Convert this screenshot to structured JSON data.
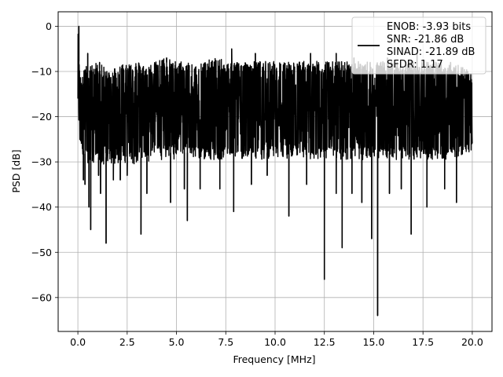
{
  "chart_data": {
    "type": "line",
    "xlabel": "Frequency [MHz]",
    "ylabel": "PSD [dB]",
    "xlim": [
      -1,
      21
    ],
    "ylim": [
      -67.5,
      3.2
    ],
    "xticks": [
      0.0,
      2.5,
      5.0,
      7.5,
      10.0,
      12.5,
      15.0,
      17.5,
      20.0
    ],
    "xtick_labels": [
      "0.0",
      "2.5",
      "5.0",
      "7.5",
      "10.0",
      "12.5",
      "15.0",
      "17.5",
      "20.0"
    ],
    "yticks": [
      0,
      -10,
      -20,
      -30,
      -40,
      -50,
      -60
    ],
    "ytick_labels": [
      "0",
      "−10",
      "−20",
      "−30",
      "−40",
      "−50",
      "−60"
    ],
    "grid": true,
    "legend_position": "top-right",
    "series": [
      {
        "name": "ENOB: -3.93 bits\nSNR: -21.86 dB\nSINAD: -21.89 dB\nSFDR: 1.17",
        "color": "#000000",
        "band_upper": [
          [
            0.0,
            0.0
          ],
          [
            0.02,
            -4
          ],
          [
            0.06,
            -9
          ],
          [
            0.12,
            -11
          ],
          [
            0.3,
            -10
          ],
          [
            0.6,
            -10
          ],
          [
            1.0,
            -9
          ],
          [
            1.5,
            -11
          ],
          [
            2.0,
            -10
          ],
          [
            2.5,
            -9
          ],
          [
            3.0,
            -9
          ],
          [
            3.5,
            -10
          ],
          [
            4.0,
            -9
          ],
          [
            4.5,
            -8
          ],
          [
            5.0,
            -9
          ],
          [
            5.5,
            -9
          ],
          [
            6.0,
            -9
          ],
          [
            6.5,
            -9
          ],
          [
            7.0,
            -8
          ],
          [
            7.5,
            -9
          ],
          [
            8.0,
            -9
          ],
          [
            8.5,
            -9
          ],
          [
            9.0,
            -9
          ],
          [
            9.5,
            -9
          ],
          [
            10.0,
            -9
          ],
          [
            10.5,
            -9
          ],
          [
            11.0,
            -9
          ],
          [
            11.5,
            -9
          ],
          [
            12.0,
            -9
          ],
          [
            12.5,
            -9
          ],
          [
            13.0,
            -9
          ],
          [
            13.5,
            -9
          ],
          [
            14.0,
            -9
          ],
          [
            14.5,
            -9
          ],
          [
            15.0,
            -9
          ],
          [
            15.5,
            -9
          ],
          [
            16.0,
            -9
          ],
          [
            16.5,
            -9
          ],
          [
            17.0,
            -9
          ],
          [
            17.5,
            -9
          ],
          [
            18.0,
            -9
          ],
          [
            18.5,
            -9
          ],
          [
            19.0,
            -9
          ],
          [
            19.5,
            -10
          ],
          [
            20.0,
            -12
          ]
        ],
        "band_lower": [
          [
            0.0,
            -23
          ],
          [
            0.3,
            -28
          ],
          [
            0.6,
            -29
          ],
          [
            1.0,
            -29
          ],
          [
            1.5,
            -29
          ],
          [
            2.0,
            -29
          ],
          [
            2.5,
            -29
          ],
          [
            3.0,
            -29
          ],
          [
            3.5,
            -29
          ],
          [
            4.0,
            -28
          ],
          [
            4.5,
            -28
          ],
          [
            5.0,
            -28
          ],
          [
            5.5,
            -28
          ],
          [
            6.0,
            -28
          ],
          [
            6.5,
            -28
          ],
          [
            7.0,
            -28
          ],
          [
            7.5,
            -28
          ],
          [
            8.0,
            -28
          ],
          [
            8.5,
            -28
          ],
          [
            9.0,
            -28
          ],
          [
            9.5,
            -28
          ],
          [
            10.0,
            -28
          ],
          [
            10.5,
            -28
          ],
          [
            11.0,
            -28
          ],
          [
            11.5,
            -28
          ],
          [
            12.0,
            -28
          ],
          [
            12.5,
            -28
          ],
          [
            13.0,
            -28
          ],
          [
            13.5,
            -28
          ],
          [
            14.0,
            -28
          ],
          [
            14.5,
            -28
          ],
          [
            15.0,
            -28
          ],
          [
            15.5,
            -28
          ],
          [
            16.0,
            -28
          ],
          [
            16.5,
            -28
          ],
          [
            17.0,
            -28
          ],
          [
            17.5,
            -28
          ],
          [
            18.0,
            -28
          ],
          [
            18.5,
            -28
          ],
          [
            19.0,
            -28
          ],
          [
            19.5,
            -27
          ],
          [
            20.0,
            -26
          ]
        ],
        "peaks": [
          [
            0.05,
            0.0
          ],
          [
            0.5,
            -6
          ],
          [
            1.1,
            -8
          ],
          [
            2.6,
            -9
          ],
          [
            4.5,
            -7
          ],
          [
            7.8,
            -5
          ],
          [
            9.0,
            -6
          ],
          [
            11.8,
            -6
          ],
          [
            13.1,
            -6
          ],
          [
            14.0,
            -7
          ],
          [
            15.7,
            -7
          ],
          [
            17.2,
            -6
          ],
          [
            18.9,
            -8
          ],
          [
            19.5,
            -10
          ]
        ],
        "dips": [
          [
            0.18,
            -24
          ],
          [
            0.28,
            -34
          ],
          [
            0.36,
            -35
          ],
          [
            0.56,
            -40
          ],
          [
            0.65,
            -45
          ],
          [
            1.05,
            -33
          ],
          [
            1.15,
            -37
          ],
          [
            1.43,
            -48
          ],
          [
            1.8,
            -34
          ],
          [
            2.15,
            -34
          ],
          [
            2.5,
            -33
          ],
          [
            3.2,
            -46
          ],
          [
            3.5,
            -37
          ],
          [
            4.7,
            -39
          ],
          [
            5.4,
            -36
          ],
          [
            5.55,
            -43
          ],
          [
            6.2,
            -36
          ],
          [
            7.2,
            -36
          ],
          [
            7.9,
            -41
          ],
          [
            8.8,
            -35
          ],
          [
            9.6,
            -33
          ],
          [
            10.7,
            -42
          ],
          [
            11.6,
            -35
          ],
          [
            12.5,
            -56
          ],
          [
            13.1,
            -37
          ],
          [
            13.4,
            -49
          ],
          [
            13.9,
            -37
          ],
          [
            14.4,
            -39
          ],
          [
            14.9,
            -47
          ],
          [
            15.2,
            -64
          ],
          [
            15.8,
            -37
          ],
          [
            16.4,
            -36
          ],
          [
            16.9,
            -46
          ],
          [
            17.7,
            -40
          ],
          [
            18.6,
            -36
          ],
          [
            19.2,
            -39
          ]
        ]
      }
    ]
  },
  "legend": {
    "lines": [
      "ENOB: -3.93 bits",
      "SNR: -21.86 dB",
      "SINAD: -21.89 dB",
      "SFDR: 1.17"
    ]
  }
}
